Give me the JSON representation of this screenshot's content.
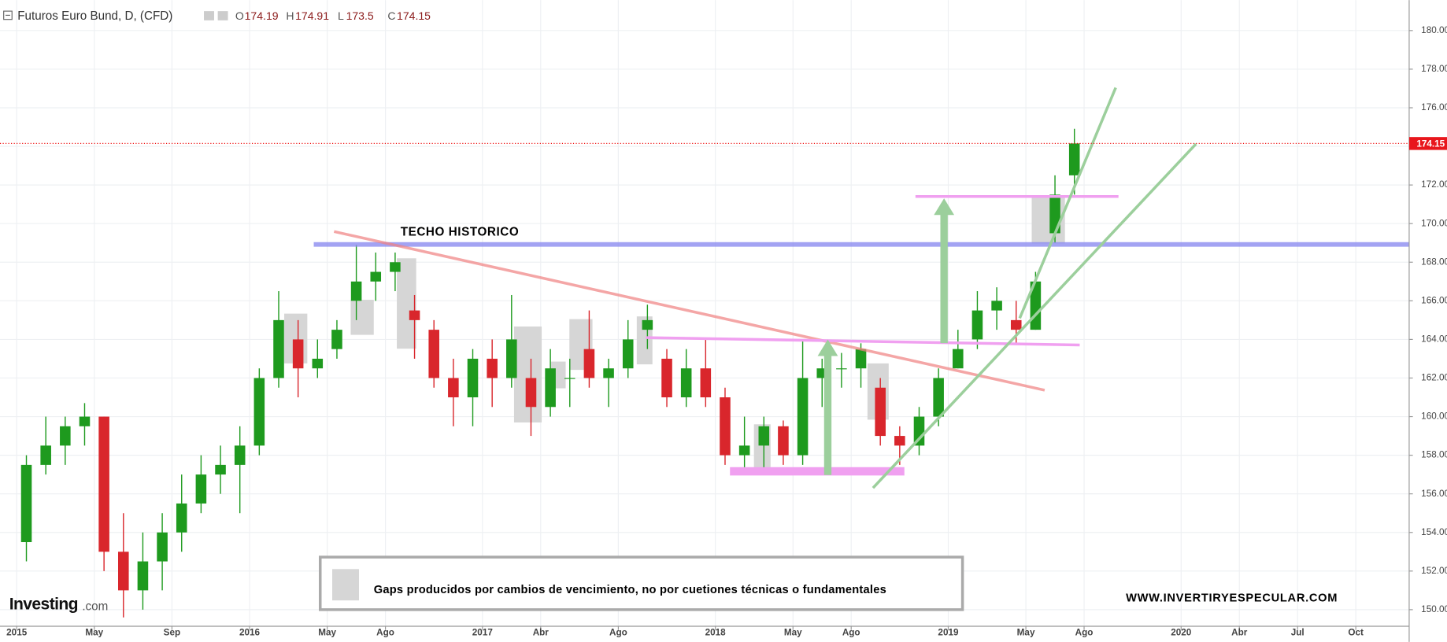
{
  "chart_data": {
    "type": "candlestick",
    "title": "Futuros Euro Bund, D, (CFD)",
    "open_label": "O",
    "open_value": 174.19,
    "high_label": "H",
    "high_value": 174.91,
    "low_label": "L",
    "low_value": 173.5,
    "close_label": "C",
    "close_value": 174.15,
    "last_price": {
      "value": 174.15,
      "label": "174.15"
    },
    "up_color": "#1e9a1e",
    "down_color": "#d9262c",
    "x": [
      0.5,
      1.5,
      2.5,
      3.5,
      4.5,
      5.5,
      6.5,
      7.5,
      8.5,
      9.5,
      10.5,
      11.5,
      12.5,
      13.5,
      14.5,
      15.5,
      16.5,
      17.5,
      18.5,
      19.5,
      20.5,
      21.5,
      22.5,
      23.5,
      24.5,
      25.5,
      26.5,
      27.5,
      28.5,
      29.5,
      30.5,
      31.5,
      32.5,
      33.5,
      34.5,
      35.5,
      36.5,
      37.5,
      38.5,
      39.5,
      40.5,
      41.5,
      42.5,
      43.5,
      44.5,
      45.5,
      46.5,
      47.5,
      48.5,
      49.5,
      50.5,
      51.5,
      52.5,
      53.5,
      54.5
    ],
    "open": [
      153.5,
      157.5,
      158.5,
      159.5,
      160,
      153,
      151,
      152.5,
      154,
      155.5,
      157,
      157.5,
      158.5,
      162,
      164,
      162.5,
      163.5,
      166,
      167,
      167.5,
      165.5,
      164.5,
      162,
      161,
      163,
      162,
      162,
      160.5,
      162,
      163.5,
      162,
      162.5,
      164.5,
      163,
      161,
      162.5,
      161,
      158,
      158.5,
      159.5,
      158,
      162,
      162.5,
      162.5,
      161.5,
      159,
      158.5,
      160,
      162.5,
      164,
      165.5,
      165,
      164.5,
      169.5,
      172.5
    ],
    "high": [
      158,
      160,
      160,
      160.7,
      160,
      155,
      154,
      155,
      157,
      158,
      158.5,
      159.5,
      162.5,
      166.5,
      165,
      164,
      165,
      168.9,
      168.5,
      168.5,
      166.3,
      165,
      163,
      163.5,
      164,
      166.3,
      163,
      163.5,
      163,
      165.5,
      163,
      165,
      165.8,
      163.5,
      163.5,
      164,
      161.5,
      160,
      160,
      159.8,
      164,
      163,
      163.3,
      163.8,
      162,
      159.5,
      160.5,
      162.5,
      164.5,
      166.5,
      166.7,
      166,
      167.5,
      172.5,
      174.91
    ],
    "low": [
      152.5,
      157,
      157.5,
      158.5,
      152,
      149.6,
      150,
      151,
      153,
      155,
      156,
      155,
      158,
      161.5,
      161,
      162,
      163,
      165,
      166,
      166.5,
      163,
      161.5,
      159.5,
      159.5,
      160.5,
      161.5,
      159,
      160,
      160.5,
      161.5,
      160.5,
      162,
      163.5,
      160.5,
      160.5,
      160.5,
      157.5,
      157.2,
      157.2,
      157.5,
      157.5,
      160.5,
      161.5,
      161.5,
      158.5,
      157.5,
      158,
      159.5,
      162.5,
      163.5,
      164.5,
      163.8,
      164.5,
      169,
      171.5
    ],
    "close": [
      157.5,
      158.5,
      159.5,
      160,
      153,
      151,
      152.5,
      154,
      155.5,
      157,
      157.5,
      158.5,
      162,
      165,
      162.5,
      163,
      164.5,
      167,
      167.5,
      168,
      165,
      162,
      161,
      163,
      162,
      164,
      160.5,
      162.5,
      162,
      162,
      162.5,
      164,
      165,
      161,
      162.5,
      161,
      158,
      158.5,
      159.5,
      158,
      162,
      162.5,
      162.5,
      163.5,
      159,
      158.5,
      160,
      162,
      163.5,
      165.5,
      166,
      164.5,
      167,
      171.5,
      174.15
    ],
    "xlim": [
      -0.86,
      71.75
    ],
    "xticks": [
      {
        "value": 0,
        "label": "2015"
      },
      {
        "value": 4,
        "label": "May"
      },
      {
        "value": 8,
        "label": "Sep"
      },
      {
        "value": 12,
        "label": "2016"
      },
      {
        "value": 16,
        "label": "May"
      },
      {
        "value": 19,
        "label": "Ago"
      },
      {
        "value": 24,
        "label": "2017"
      },
      {
        "value": 27,
        "label": "Abr"
      },
      {
        "value": 31,
        "label": "Ago"
      },
      {
        "value": 36,
        "label": "2018"
      },
      {
        "value": 40,
        "label": "May"
      },
      {
        "value": 43,
        "label": "Ago"
      },
      {
        "value": 48,
        "label": "2019"
      },
      {
        "value": 52,
        "label": "May"
      },
      {
        "value": 55,
        "label": "Ago"
      },
      {
        "value": 60,
        "label": "2020"
      },
      {
        "value": 63,
        "label": "Abr"
      },
      {
        "value": 66,
        "label": "Jul"
      },
      {
        "value": 69,
        "label": "Oct"
      }
    ],
    "ylim": [
      149.14,
      181.58
    ],
    "yticks": [
      {
        "value": 150,
        "label": "150.00"
      },
      {
        "value": 152,
        "label": "152.00"
      },
      {
        "value": 154,
        "label": "154.00"
      },
      {
        "value": 156,
        "label": "156.00"
      },
      {
        "value": 158,
        "label": "158.00"
      },
      {
        "value": 160,
        "label": "160.00"
      },
      {
        "value": 162,
        "label": "162.00"
      },
      {
        "value": 164,
        "label": "164.00"
      },
      {
        "value": 166,
        "label": "166.00"
      },
      {
        "value": 168,
        "label": "168.00"
      },
      {
        "value": 170,
        "label": "170.00"
      },
      {
        "value": 172,
        "label": "172.00"
      },
      {
        "value": 174,
        "label": "174.00"
      },
      {
        "value": 176,
        "label": "176.00"
      },
      {
        "value": 178,
        "label": "178.00"
      },
      {
        "value": 180,
        "label": "180.00"
      }
    ],
    "grid": true,
    "annotations": [
      "TECHO HISTORICO",
      "Gaps producidos por cambios de vencimiento, no por cuetiones técnicas o fundamentales",
      "WWW.INVERTIRYESPECULAR.COM"
    ],
    "logo": "Investing",
    "logo_suffix": ".com"
  }
}
